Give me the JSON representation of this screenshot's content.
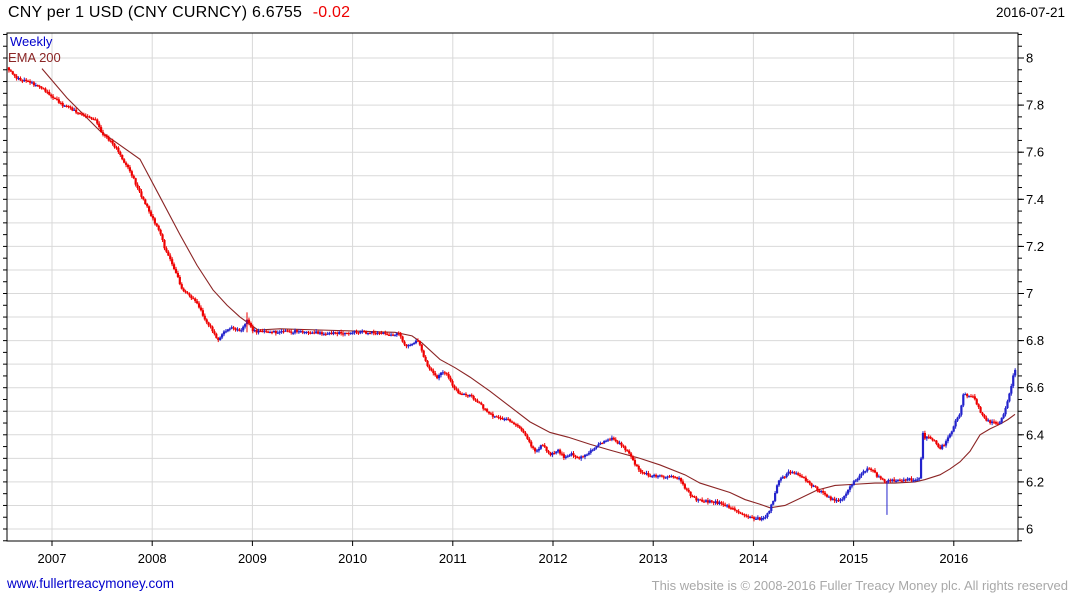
{
  "header": {
    "instrument": "CNY per 1 USD (CNY CURNCY)",
    "last_price": "6.6755",
    "change": "-0.02",
    "date": "2016-07-21"
  },
  "overlays": {
    "timeframe_label": "Weekly",
    "ema_label": "EMA 200"
  },
  "footer": {
    "site": "www.fullertreacymoney.com",
    "copyright": "This website is © 2008-2016 Fuller Treacy Money plc. All rights reserved"
  },
  "colors": {
    "up": "#2222cc",
    "down": "#ee0000",
    "ema": "#8b2525",
    "timeframe_label": "#0000cc",
    "change": "#ee0000",
    "grid": "#d9d9d9",
    "axis": "#000000",
    "link": "#0000cc",
    "footer_text": "#a8a8a8",
    "background": "#ffffff"
  },
  "chart_data": {
    "type": "line",
    "subtype": "weekly-ohlc-bars",
    "title": "CNY per 1 USD (CNY CURNCY)",
    "x_axis": {
      "range": [
        2006.45,
        2016.72
      ],
      "ticks": [
        {
          "v": 2007,
          "t": "2007"
        },
        {
          "v": 2008,
          "t": "2008"
        },
        {
          "v": 2009,
          "t": "2009"
        },
        {
          "v": 2010,
          "t": "2010"
        },
        {
          "v": 2011,
          "t": "2011"
        },
        {
          "v": 2012,
          "t": "2012"
        },
        {
          "v": 2013,
          "t": "2013"
        },
        {
          "v": 2014,
          "t": "2014"
        },
        {
          "v": 2015,
          "t": "2015"
        },
        {
          "v": 2016,
          "t": "2016"
        }
      ]
    },
    "y_axis": {
      "range": [
        5.949,
        8.106
      ],
      "grid_step": 0.1,
      "minor_tick_step": 0.05,
      "labels": [
        {
          "v": 8.0,
          "t": "8"
        },
        {
          "v": 7.8,
          "t": "7.8"
        },
        {
          "v": 7.6,
          "t": "7.6"
        },
        {
          "v": 7.4,
          "t": "7.4"
        },
        {
          "v": 7.2,
          "t": "7.2"
        },
        {
          "v": 7.0,
          "t": "7"
        },
        {
          "v": 6.8,
          "t": "6.8"
        },
        {
          "v": 6.6,
          "t": "6.6"
        },
        {
          "v": 6.4,
          "t": "6.4"
        },
        {
          "v": 6.2,
          "t": "6.2"
        },
        {
          "v": 6.0,
          "t": "6"
        }
      ]
    },
    "legend": [
      {
        "label": "Weekly",
        "series": "price"
      },
      {
        "label": "EMA 200",
        "series": "ema"
      }
    ],
    "series": [
      {
        "name": "price",
        "style": "weekly-ohlc",
        "keyframes": [
          [
            2006.551,
            7.96
          ],
          [
            2006.611,
            7.93
          ],
          [
            2006.681,
            7.905
          ],
          [
            2006.76,
            7.9
          ],
          [
            2006.84,
            7.885
          ],
          [
            2006.91,
            7.87
          ],
          [
            2007.01,
            7.835
          ],
          [
            2007.11,
            7.8
          ],
          [
            2007.21,
            7.78
          ],
          [
            2007.309,
            7.755
          ],
          [
            2007.429,
            7.74
          ],
          [
            2007.509,
            7.675
          ],
          [
            2007.579,
            7.65
          ],
          [
            2007.649,
            7.61
          ],
          [
            2007.719,
            7.56
          ],
          [
            2007.778,
            7.52
          ],
          [
            2007.848,
            7.455
          ],
          [
            2007.908,
            7.4
          ],
          [
            2007.968,
            7.35
          ],
          [
            2008.018,
            7.305
          ],
          [
            2008.078,
            7.26
          ],
          [
            2008.118,
            7.2
          ],
          [
            2008.178,
            7.15
          ],
          [
            2008.237,
            7.09
          ],
          [
            2008.297,
            7.02
          ],
          [
            2008.347,
            7.0
          ],
          [
            2008.407,
            6.975
          ],
          [
            2008.467,
            6.945
          ],
          [
            2008.527,
            6.89
          ],
          [
            2008.587,
            6.855
          ],
          [
            2008.647,
            6.8
          ],
          [
            2008.716,
            6.84
          ],
          [
            2008.776,
            6.855
          ],
          [
            2008.876,
            6.84
          ],
          [
            2008.946,
            6.885
          ],
          [
            2009.006,
            6.84
          ],
          [
            2009.175,
            6.835
          ],
          [
            2009.475,
            6.84
          ],
          [
            2009.774,
            6.83
          ],
          [
            2010.074,
            6.835
          ],
          [
            2010.323,
            6.83
          ],
          [
            2010.473,
            6.825
          ],
          [
            2010.523,
            6.775
          ],
          [
            2010.593,
            6.79
          ],
          [
            2010.653,
            6.8
          ],
          [
            2010.712,
            6.73
          ],
          [
            2010.752,
            6.69
          ],
          [
            2010.802,
            6.665
          ],
          [
            2010.842,
            6.635
          ],
          [
            2010.892,
            6.67
          ],
          [
            2010.952,
            6.65
          ],
          [
            2011.002,
            6.6
          ],
          [
            2011.072,
            6.575
          ],
          [
            2011.172,
            6.565
          ],
          [
            2011.251,
            6.54
          ],
          [
            2011.351,
            6.49
          ],
          [
            2011.441,
            6.475
          ],
          [
            2011.551,
            6.465
          ],
          [
            2011.641,
            6.44
          ],
          [
            2011.74,
            6.385
          ],
          [
            2011.82,
            6.33
          ],
          [
            2011.9,
            6.36
          ],
          [
            2011.97,
            6.315
          ],
          [
            2012.05,
            6.335
          ],
          [
            2012.12,
            6.3
          ],
          [
            2012.19,
            6.32
          ],
          [
            2012.25,
            6.3
          ],
          [
            2012.319,
            6.315
          ],
          [
            2012.419,
            6.345
          ],
          [
            2012.519,
            6.375
          ],
          [
            2012.589,
            6.385
          ],
          [
            2012.669,
            6.36
          ],
          [
            2012.748,
            6.325
          ],
          [
            2012.808,
            6.285
          ],
          [
            2012.868,
            6.24
          ],
          [
            2012.948,
            6.23
          ],
          [
            2013.048,
            6.225
          ],
          [
            2013.188,
            6.22
          ],
          [
            2013.267,
            6.21
          ],
          [
            2013.327,
            6.17
          ],
          [
            2013.387,
            6.135
          ],
          [
            2013.467,
            6.12
          ],
          [
            2013.617,
            6.115
          ],
          [
            2013.716,
            6.1
          ],
          [
            2013.816,
            6.08
          ],
          [
            2013.886,
            6.065
          ],
          [
            2013.966,
            6.05
          ],
          [
            2014.036,
            6.045
          ],
          [
            2014.096,
            6.04
          ],
          [
            2014.146,
            6.065
          ],
          [
            2014.196,
            6.12
          ],
          [
            2014.245,
            6.2
          ],
          [
            2014.315,
            6.225
          ],
          [
            2014.365,
            6.245
          ],
          [
            2014.435,
            6.235
          ],
          [
            2014.515,
            6.21
          ],
          [
            2014.585,
            6.185
          ],
          [
            2014.664,
            6.16
          ],
          [
            2014.744,
            6.135
          ],
          [
            2014.844,
            6.115
          ],
          [
            2014.914,
            6.14
          ],
          [
            2014.984,
            6.19
          ],
          [
            2015.044,
            6.215
          ],
          [
            2015.113,
            6.25
          ],
          [
            2015.183,
            6.255
          ],
          [
            2015.243,
            6.22
          ],
          [
            2015.313,
            6.205
          ],
          [
            2015.413,
            6.205
          ],
          [
            2015.513,
            6.21
          ],
          [
            2015.643,
            6.21
          ],
          [
            2015.665,
            6.215
          ],
          [
            2015.684,
            6.415
          ],
          [
            2015.703,
            6.39
          ],
          [
            2015.762,
            6.385
          ],
          [
            2015.812,
            6.37
          ],
          [
            2015.862,
            6.345
          ],
          [
            2015.912,
            6.36
          ],
          [
            2015.962,
            6.4
          ],
          [
            2016.012,
            6.45
          ],
          [
            2016.062,
            6.49
          ],
          [
            2016.092,
            6.575
          ],
          [
            2016.142,
            6.565
          ],
          [
            2016.211,
            6.555
          ],
          [
            2016.251,
            6.51
          ],
          [
            2016.301,
            6.475
          ],
          [
            2016.351,
            6.455
          ],
          [
            2016.401,
            6.45
          ],
          [
            2016.451,
            6.445
          ],
          [
            2016.501,
            6.49
          ],
          [
            2016.541,
            6.545
          ],
          [
            2016.571,
            6.6
          ],
          [
            2016.601,
            6.665
          ],
          [
            2016.621,
            6.6755
          ]
        ],
        "long_wicks": [
          {
            "year": 2008.946,
            "high": 6.92,
            "low": 6.835,
            "dir": "down"
          },
          {
            "year": 2015.333,
            "high": 6.205,
            "low": 6.06,
            "dir": "up"
          }
        ],
        "last_close": 6.6755
      },
      {
        "name": "EMA 200",
        "style": "line",
        "keyframes": [
          [
            2006.9,
            7.955
          ],
          [
            2007.15,
            7.83
          ],
          [
            2007.479,
            7.69
          ],
          [
            2007.878,
            7.57
          ],
          [
            2008.078,
            7.41
          ],
          [
            2008.277,
            7.25
          ],
          [
            2008.447,
            7.12
          ],
          [
            2008.607,
            7.015
          ],
          [
            2008.747,
            6.95
          ],
          [
            2008.876,
            6.9
          ],
          [
            2009.056,
            6.845
          ],
          [
            2009.275,
            6.85
          ],
          [
            2009.675,
            6.845
          ],
          [
            2010.074,
            6.84
          ],
          [
            2010.423,
            6.835
          ],
          [
            2010.593,
            6.82
          ],
          [
            2010.693,
            6.79
          ],
          [
            2010.872,
            6.72
          ],
          [
            2011.022,
            6.685
          ],
          [
            2011.172,
            6.645
          ],
          [
            2011.371,
            6.585
          ],
          [
            2011.571,
            6.52
          ],
          [
            2011.77,
            6.455
          ],
          [
            2011.97,
            6.41
          ],
          [
            2012.15,
            6.39
          ],
          [
            2012.369,
            6.36
          ],
          [
            2012.569,
            6.335
          ],
          [
            2012.868,
            6.3
          ],
          [
            2013.068,
            6.272
          ],
          [
            2013.317,
            6.23
          ],
          [
            2013.467,
            6.195
          ],
          [
            2013.766,
            6.155
          ],
          [
            2013.916,
            6.125
          ],
          [
            2014.066,
            6.105
          ],
          [
            2014.166,
            6.09
          ],
          [
            2014.315,
            6.1
          ],
          [
            2014.465,
            6.13
          ],
          [
            2014.635,
            6.165
          ],
          [
            2014.814,
            6.185
          ],
          [
            2015.014,
            6.19
          ],
          [
            2015.213,
            6.195
          ],
          [
            2015.413,
            6.195
          ],
          [
            2015.613,
            6.2
          ],
          [
            2015.713,
            6.21
          ],
          [
            2015.862,
            6.23
          ],
          [
            2015.962,
            6.255
          ],
          [
            2016.062,
            6.285
          ],
          [
            2016.162,
            6.33
          ],
          [
            2016.262,
            6.4
          ],
          [
            2016.361,
            6.425
          ],
          [
            2016.461,
            6.445
          ],
          [
            2016.541,
            6.465
          ],
          [
            2016.611,
            6.487
          ]
        ]
      }
    ]
  }
}
